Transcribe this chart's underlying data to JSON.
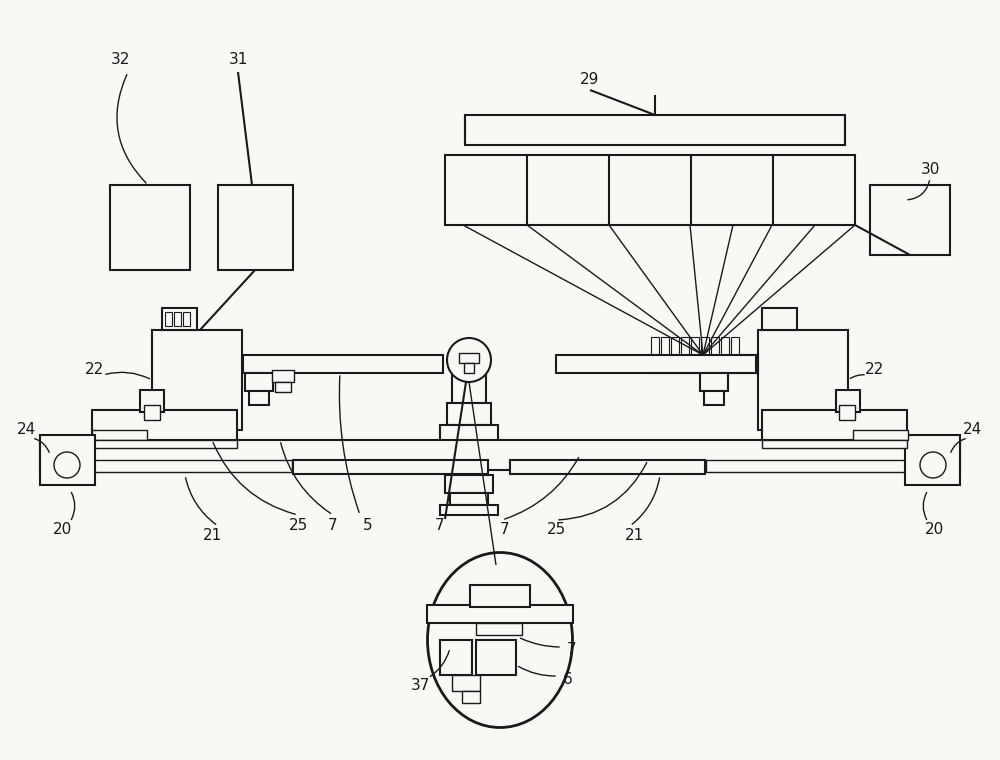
{
  "bg": "#f8f8f5",
  "lc": "#1a1a1a",
  "lw": 1.5,
  "lw2": 1.0,
  "lw3": 0.8,
  "fs": 11
}
